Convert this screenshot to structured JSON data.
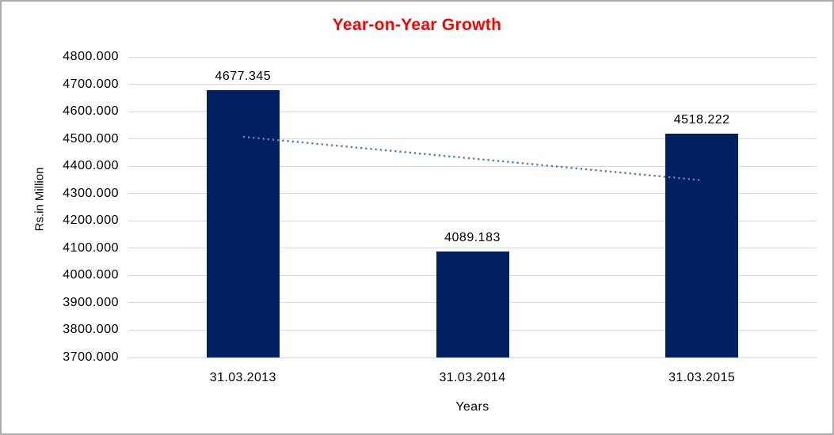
{
  "chart_data": {
    "type": "bar",
    "title": "Year-on-Year Growth",
    "xlabel": "Years",
    "ylabel": "Rs.in Million",
    "categories": [
      "31.03.2013",
      "31.03.2014",
      "31.03.2015"
    ],
    "values": [
      4677.345,
      4089.183,
      4518.222
    ],
    "data_labels": [
      "4677.345",
      "4089.183",
      "4518.222"
    ],
    "ylim": [
      3700,
      4800
    ],
    "y_tick_step": 100,
    "y_tick_labels": [
      "3700.000",
      "3800.000",
      "3900.000",
      "4000.000",
      "4100.000",
      "4200.000",
      "4300.000",
      "4400.000",
      "4500.000",
      "4600.000",
      "4700.000",
      "4800.000"
    ],
    "grid": "horizontal",
    "legend": "none",
    "trendline": {
      "type": "linear",
      "style": "dotted",
      "approx_endpoint_values": [
        4507.8,
        4348.7
      ]
    },
    "colors": {
      "bar": "#002060",
      "title": "#ff0000",
      "trendline": "#4f81bd",
      "gridline": "#d9d9d9",
      "text": "#000000",
      "border": "#ababab",
      "background": "#ffffff"
    }
  }
}
